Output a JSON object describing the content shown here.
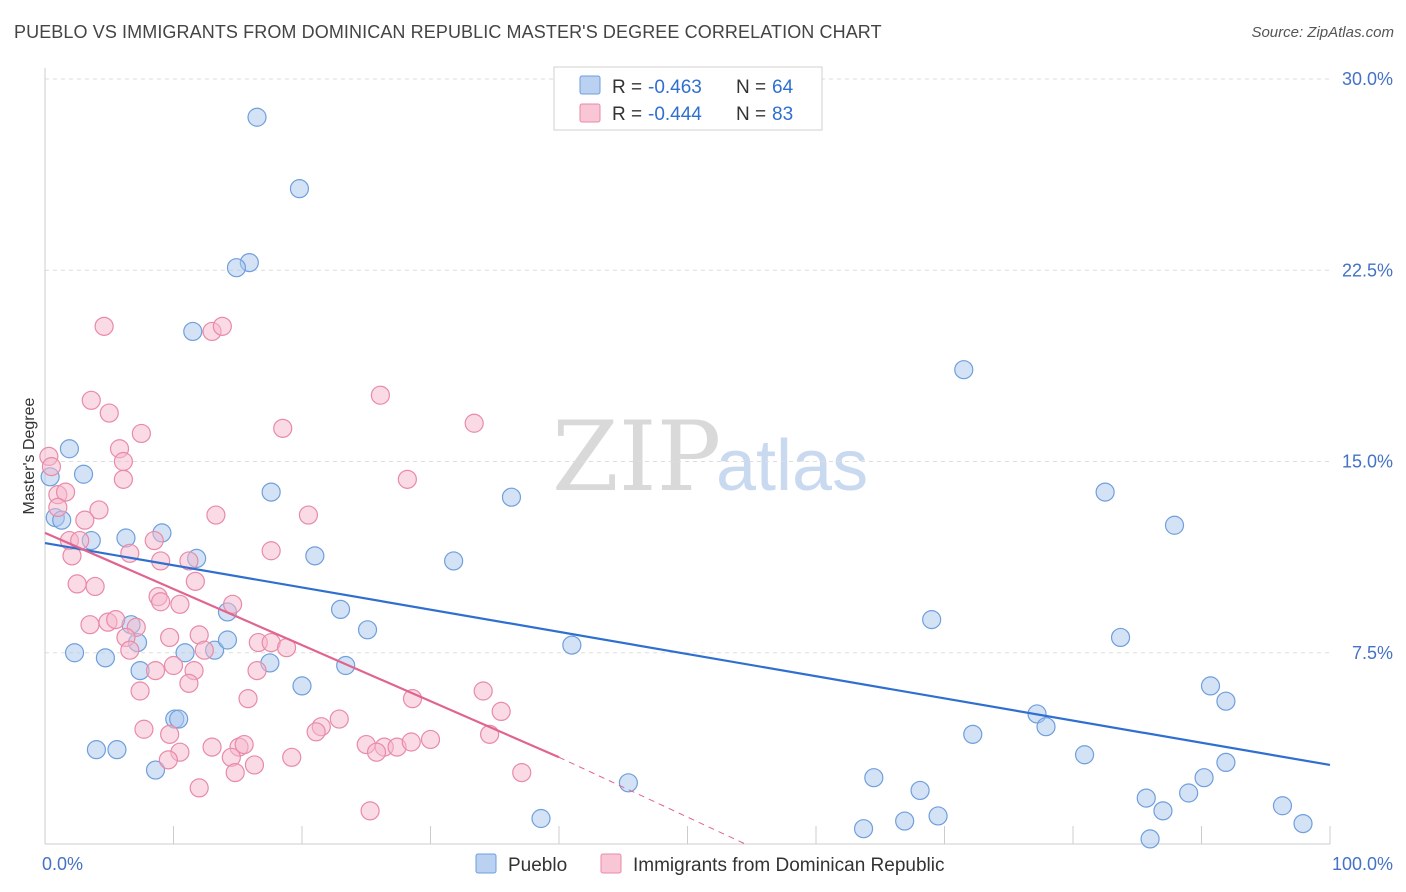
{
  "header": {
    "title": "PUEBLO VS IMMIGRANTS FROM DOMINICAN REPUBLIC MASTER'S DEGREE CORRELATION CHART",
    "source": "Source: ZipAtlas.com"
  },
  "watermark": {
    "zip": "ZIP",
    "atlas": "atlas"
  },
  "colors": {
    "pueblo_fill": "#a9c6ee",
    "pueblo_stroke": "#6f9fdc",
    "pueblo_line": "#2f6fd0",
    "dom_fill": "#f6b8cb",
    "dom_stroke": "#e98aa8",
    "dom_line": "#e0648f",
    "grid": "#dddddd",
    "tick_text": "#4472c4"
  },
  "legend": {
    "rows": [
      {
        "r_label": "R =",
        "r_value": "-0.463",
        "n_label": "N =",
        "n_value": "64"
      },
      {
        "r_label": "R =",
        "r_value": "-0.444",
        "n_label": "N =",
        "n_value": "83"
      }
    ]
  },
  "chart_data": {
    "type": "scatter",
    "title": "PUEBLO VS IMMIGRANTS FROM DOMINICAN REPUBLIC MASTER'S DEGREE CORRELATION CHART",
    "xlabel": "",
    "ylabel": "Master's Degree",
    "xlim": [
      0,
      100
    ],
    "ylim": [
      0,
      30
    ],
    "x_tick_labels": [
      "0.0%",
      "100.0%"
    ],
    "y_ticks": [
      7.5,
      15.0,
      22.5,
      30.0
    ],
    "y_tick_labels": [
      "7.5%",
      "15.0%",
      "22.5%",
      "30.0%"
    ],
    "grid": true,
    "legend_placement": "top-center",
    "series": [
      {
        "name": "Pueblo",
        "r": -0.463,
        "n": 64,
        "trend": {
          "x": [
            0,
            100
          ],
          "y": [
            11.8,
            3.1
          ]
        },
        "points": [
          [
            16.5,
            28.5
          ],
          [
            19.8,
            25.7
          ],
          [
            15.9,
            22.8
          ],
          [
            14.9,
            22.6
          ],
          [
            11.5,
            20.1
          ],
          [
            71.5,
            18.6
          ],
          [
            1.9,
            15.5
          ],
          [
            3.0,
            14.5
          ],
          [
            0.4,
            14.4
          ],
          [
            17.6,
            13.8
          ],
          [
            36.3,
            13.6
          ],
          [
            82.5,
            13.8
          ],
          [
            87.9,
            12.5
          ],
          [
            0.8,
            12.8
          ],
          [
            1.3,
            12.7
          ],
          [
            3.6,
            11.9
          ],
          [
            6.3,
            12.0
          ],
          [
            9.1,
            12.2
          ],
          [
            21.0,
            11.3
          ],
          [
            11.8,
            11.2
          ],
          [
            31.8,
            11.1
          ],
          [
            14.2,
            9.1
          ],
          [
            23.0,
            9.2
          ],
          [
            25.1,
            8.4
          ],
          [
            69.0,
            8.8
          ],
          [
            83.7,
            8.1
          ],
          [
            2.3,
            7.5
          ],
          [
            4.7,
            7.3
          ],
          [
            6.7,
            8.6
          ],
          [
            7.2,
            7.9
          ],
          [
            13.2,
            7.6
          ],
          [
            14.2,
            8.0
          ],
          [
            10.9,
            7.5
          ],
          [
            17.5,
            7.1
          ],
          [
            23.4,
            7.0
          ],
          [
            41.0,
            7.8
          ],
          [
            7.4,
            6.8
          ],
          [
            20.0,
            6.2
          ],
          [
            10.1,
            4.9
          ],
          [
            10.4,
            4.9
          ],
          [
            4.0,
            3.7
          ],
          [
            5.6,
            3.7
          ],
          [
            8.6,
            2.9
          ],
          [
            72.2,
            4.3
          ],
          [
            77.2,
            5.1
          ],
          [
            77.9,
            4.6
          ],
          [
            80.9,
            3.5
          ],
          [
            90.7,
            6.2
          ],
          [
            91.9,
            5.6
          ],
          [
            45.4,
            2.4
          ],
          [
            64.5,
            2.6
          ],
          [
            68.1,
            2.1
          ],
          [
            90.2,
            2.6
          ],
          [
            91.9,
            3.2
          ],
          [
            85.7,
            1.8
          ],
          [
            89.0,
            2.0
          ],
          [
            38.6,
            1.0
          ],
          [
            63.7,
            0.6
          ],
          [
            66.9,
            0.9
          ],
          [
            69.5,
            1.1
          ],
          [
            87.0,
            1.3
          ],
          [
            96.3,
            1.5
          ],
          [
            97.9,
            0.8
          ],
          [
            86.0,
            0.2
          ]
        ]
      },
      {
        "name": "Immigrants from Dominican Republic",
        "r": -0.444,
        "n": 83,
        "trend": {
          "x": [
            0,
            40
          ],
          "y": [
            12.2,
            3.4
          ]
        },
        "trend_extended": {
          "x": [
            40,
            54.5
          ],
          "y": [
            3.4,
            0
          ]
        },
        "points": [
          [
            4.6,
            20.3
          ],
          [
            13.0,
            20.1
          ],
          [
            13.8,
            20.3
          ],
          [
            26.1,
            17.6
          ],
          [
            3.6,
            17.4
          ],
          [
            5.0,
            16.9
          ],
          [
            33.4,
            16.5
          ],
          [
            18.5,
            16.3
          ],
          [
            7.5,
            16.1
          ],
          [
            0.3,
            15.2
          ],
          [
            0.5,
            14.8
          ],
          [
            5.8,
            15.5
          ],
          [
            6.1,
            15.0
          ],
          [
            6.1,
            14.3
          ],
          [
            1.0,
            13.7
          ],
          [
            1.6,
            13.8
          ],
          [
            1.0,
            13.2
          ],
          [
            28.2,
            14.3
          ],
          [
            4.2,
            13.1
          ],
          [
            13.3,
            12.9
          ],
          [
            20.5,
            12.9
          ],
          [
            3.1,
            12.7
          ],
          [
            1.9,
            11.9
          ],
          [
            2.7,
            11.9
          ],
          [
            8.5,
            11.9
          ],
          [
            6.6,
            11.4
          ],
          [
            17.6,
            11.5
          ],
          [
            2.1,
            11.3
          ],
          [
            9.0,
            11.1
          ],
          [
            11.2,
            11.1
          ],
          [
            11.7,
            10.3
          ],
          [
            2.5,
            10.2
          ],
          [
            3.9,
            10.1
          ],
          [
            8.8,
            9.7
          ],
          [
            9.0,
            9.5
          ],
          [
            10.5,
            9.4
          ],
          [
            14.6,
            9.4
          ],
          [
            4.9,
            8.7
          ],
          [
            3.5,
            8.6
          ],
          [
            5.5,
            8.8
          ],
          [
            7.1,
            8.5
          ],
          [
            6.3,
            8.1
          ],
          [
            9.7,
            8.1
          ],
          [
            12.0,
            8.2
          ],
          [
            16.6,
            7.9
          ],
          [
            17.6,
            7.9
          ],
          [
            18.8,
            7.7
          ],
          [
            6.6,
            7.6
          ],
          [
            12.4,
            7.6
          ],
          [
            10.0,
            7.0
          ],
          [
            11.6,
            6.8
          ],
          [
            8.6,
            6.8
          ],
          [
            16.5,
            6.8
          ],
          [
            11.2,
            6.3
          ],
          [
            7.4,
            6.0
          ],
          [
            34.1,
            6.0
          ],
          [
            15.8,
            5.7
          ],
          [
            28.6,
            5.7
          ],
          [
            35.5,
            5.2
          ],
          [
            22.9,
            4.9
          ],
          [
            21.5,
            4.6
          ],
          [
            21.1,
            4.4
          ],
          [
            7.7,
            4.5
          ],
          [
            9.7,
            4.3
          ],
          [
            13.0,
            3.8
          ],
          [
            10.5,
            3.6
          ],
          [
            9.6,
            3.3
          ],
          [
            15.1,
            3.8
          ],
          [
            15.5,
            3.9
          ],
          [
            25.0,
            3.9
          ],
          [
            26.4,
            3.8
          ],
          [
            25.8,
            3.6
          ],
          [
            27.4,
            3.8
          ],
          [
            28.5,
            4.0
          ],
          [
            30.0,
            4.1
          ],
          [
            34.6,
            4.3
          ],
          [
            19.2,
            3.4
          ],
          [
            14.5,
            3.4
          ],
          [
            16.3,
            3.1
          ],
          [
            14.8,
            2.8
          ],
          [
            37.1,
            2.8
          ],
          [
            12.0,
            2.2
          ],
          [
            25.3,
            1.3
          ]
        ]
      }
    ]
  }
}
